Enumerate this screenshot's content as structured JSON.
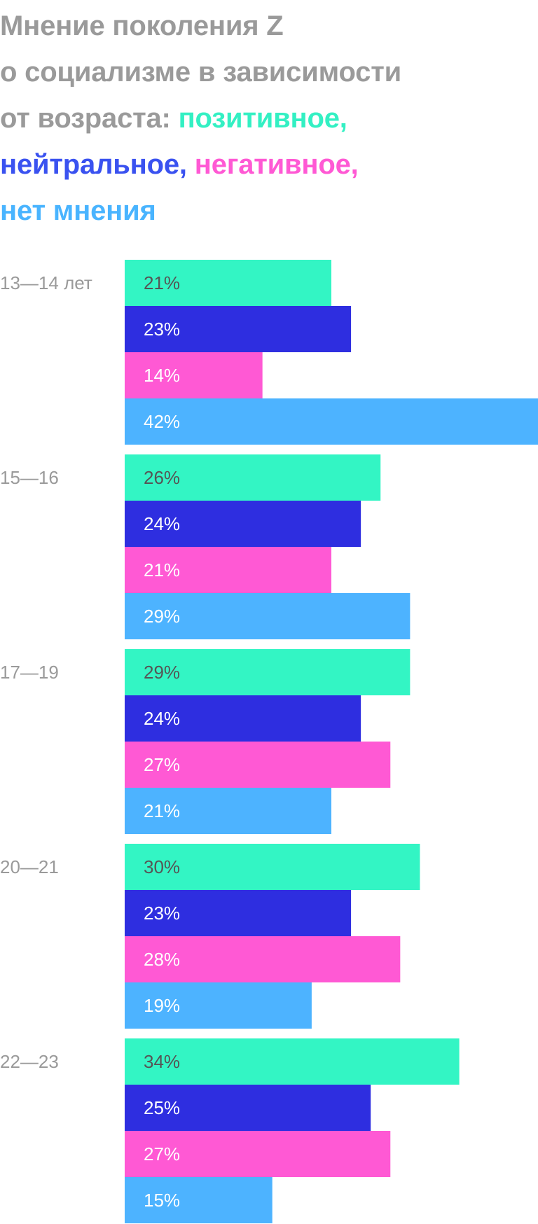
{
  "title": {
    "line1": "Мнение поколения Z",
    "line2": "о социализме в зависимости",
    "line3_prefix": "от возраста: ",
    "positive": "позитивное,",
    "neutral": "нейтральное,",
    "negative": "негативное,",
    "none": "нет мнения"
  },
  "colors": {
    "title_gray": "#9a9a9a",
    "positive": "#33f5c4",
    "neutral": "#2e2ee0",
    "negative": "#ff59d4",
    "none": "#4db3ff",
    "title_neutral": "#3a52f0",
    "title_positive": "#33f0c3",
    "title_none": "#49b4ff"
  },
  "chart_data": {
    "type": "bar",
    "orientation": "horizontal",
    "unit": "%",
    "categories": [
      "13—14 лет",
      "15—16",
      "17—19",
      "20—21",
      "22—23"
    ],
    "series": [
      {
        "name": "позитивное",
        "color": "#33f5c4",
        "label_color": "#555555",
        "values": [
          21,
          26,
          29,
          30,
          34
        ]
      },
      {
        "name": "нейтральное",
        "color": "#2e2ee0",
        "label_color": "#ffffff",
        "values": [
          23,
          24,
          24,
          23,
          25
        ]
      },
      {
        "name": "негативное",
        "color": "#ff59d4",
        "label_color": "#ffffff",
        "values": [
          14,
          21,
          27,
          28,
          27
        ]
      },
      {
        "name": "нет мнения",
        "color": "#4db3ff",
        "label_color": "#ffffff",
        "values": [
          42,
          29,
          21,
          19,
          15
        ]
      }
    ],
    "xlim": [
      0,
      42
    ],
    "grid": false,
    "legend": "title"
  }
}
